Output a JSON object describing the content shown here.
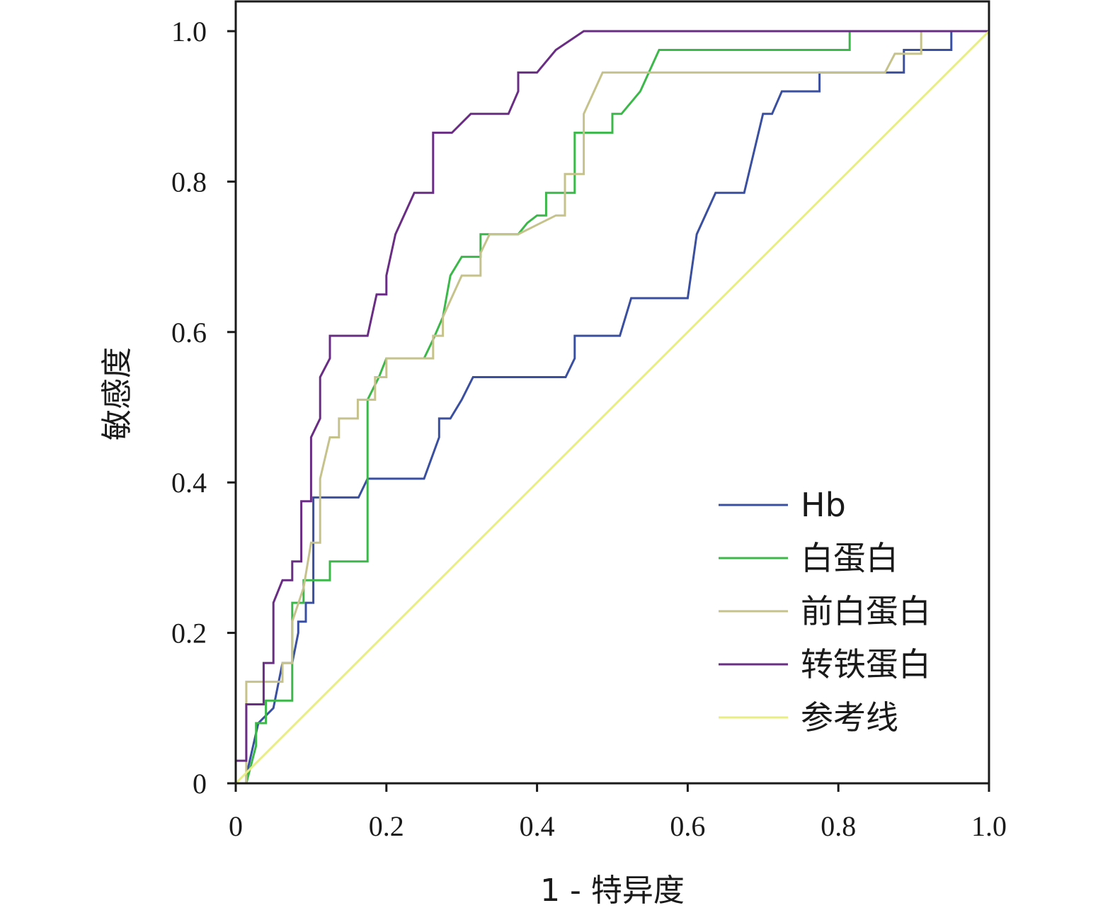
{
  "chart_data": {
    "type": "line",
    "title": "",
    "xlabel": "1 - 特异度",
    "ylabel": "敏感度",
    "xlim": [
      0,
      1
    ],
    "ylim": [
      0,
      1
    ],
    "xticks": [
      "0",
      "0.2",
      "0.4",
      "0.6",
      "0.8",
      "1.0"
    ],
    "yticks": [
      "0",
      "0.2",
      "0.4",
      "0.6",
      "0.8",
      "1.0"
    ],
    "grid": false,
    "legend_position": "bottom-right",
    "series": [
      {
        "name": "Hb",
        "color": "#3a4fa0",
        "points": [
          [
            0.014,
            0
          ],
          [
            0.014,
            0.01
          ],
          [
            0.03,
            0.08
          ],
          [
            0.05,
            0.1
          ],
          [
            0.062,
            0.16
          ],
          [
            0.075,
            0.16
          ],
          [
            0.083,
            0.2
          ],
          [
            0.083,
            0.215
          ],
          [
            0.093,
            0.215
          ],
          [
            0.093,
            0.24
          ],
          [
            0.103,
            0.24
          ],
          [
            0.103,
            0.38
          ],
          [
            0.163,
            0.38
          ],
          [
            0.175,
            0.405
          ],
          [
            0.25,
            0.405
          ],
          [
            0.27,
            0.46
          ],
          [
            0.27,
            0.485
          ],
          [
            0.285,
            0.485
          ],
          [
            0.3,
            0.51
          ],
          [
            0.315,
            0.54
          ],
          [
            0.438,
            0.54
          ],
          [
            0.45,
            0.565
          ],
          [
            0.45,
            0.595
          ],
          [
            0.51,
            0.595
          ],
          [
            0.525,
            0.645
          ],
          [
            0.6,
            0.645
          ],
          [
            0.612,
            0.73
          ],
          [
            0.637,
            0.785
          ],
          [
            0.675,
            0.785
          ],
          [
            0.7,
            0.89
          ],
          [
            0.712,
            0.89
          ],
          [
            0.725,
            0.92
          ],
          [
            0.775,
            0.92
          ],
          [
            0.775,
            0.945
          ],
          [
            0.887,
            0.945
          ],
          [
            0.887,
            0.975
          ],
          [
            0.95,
            0.975
          ],
          [
            0.95,
            1.0
          ],
          [
            1.0,
            1.0
          ]
        ]
      },
      {
        "name": "白蛋白",
        "color": "#3cb84a",
        "points": [
          [
            0.014,
            0
          ],
          [
            0.027,
            0.05
          ],
          [
            0.027,
            0.08
          ],
          [
            0.04,
            0.08
          ],
          [
            0.04,
            0.11
          ],
          [
            0.075,
            0.11
          ],
          [
            0.075,
            0.24
          ],
          [
            0.09,
            0.24
          ],
          [
            0.09,
            0.27
          ],
          [
            0.125,
            0.27
          ],
          [
            0.125,
            0.295
          ],
          [
            0.175,
            0.295
          ],
          [
            0.175,
            0.51
          ],
          [
            0.19,
            0.54
          ],
          [
            0.2,
            0.565
          ],
          [
            0.25,
            0.565
          ],
          [
            0.262,
            0.59
          ],
          [
            0.275,
            0.62
          ],
          [
            0.285,
            0.675
          ],
          [
            0.3,
            0.7
          ],
          [
            0.325,
            0.7
          ],
          [
            0.325,
            0.73
          ],
          [
            0.375,
            0.73
          ],
          [
            0.387,
            0.745
          ],
          [
            0.4,
            0.755
          ],
          [
            0.412,
            0.755
          ],
          [
            0.412,
            0.785
          ],
          [
            0.45,
            0.785
          ],
          [
            0.45,
            0.865
          ],
          [
            0.5,
            0.865
          ],
          [
            0.5,
            0.89
          ],
          [
            0.512,
            0.89
          ],
          [
            0.537,
            0.92
          ],
          [
            0.562,
            0.975
          ],
          [
            0.815,
            0.975
          ],
          [
            0.815,
            1.0
          ],
          [
            1.0,
            1.0
          ]
        ]
      },
      {
        "name": "前白蛋白",
        "color": "#c6c28c",
        "points": [
          [
            0.014,
            0
          ],
          [
            0.014,
            0.08
          ],
          [
            0.014,
            0.135
          ],
          [
            0.062,
            0.135
          ],
          [
            0.062,
            0.16
          ],
          [
            0.075,
            0.16
          ],
          [
            0.075,
            0.215
          ],
          [
            0.09,
            0.26
          ],
          [
            0.1,
            0.32
          ],
          [
            0.112,
            0.32
          ],
          [
            0.112,
            0.405
          ],
          [
            0.125,
            0.46
          ],
          [
            0.137,
            0.46
          ],
          [
            0.137,
            0.485
          ],
          [
            0.162,
            0.485
          ],
          [
            0.162,
            0.51
          ],
          [
            0.185,
            0.51
          ],
          [
            0.185,
            0.54
          ],
          [
            0.2,
            0.54
          ],
          [
            0.2,
            0.565
          ],
          [
            0.262,
            0.565
          ],
          [
            0.262,
            0.595
          ],
          [
            0.275,
            0.595
          ],
          [
            0.275,
            0.62
          ],
          [
            0.3,
            0.675
          ],
          [
            0.325,
            0.675
          ],
          [
            0.325,
            0.705
          ],
          [
            0.337,
            0.73
          ],
          [
            0.375,
            0.73
          ],
          [
            0.425,
            0.755
          ],
          [
            0.437,
            0.755
          ],
          [
            0.437,
            0.81
          ],
          [
            0.45,
            0.81
          ],
          [
            0.462,
            0.81
          ],
          [
            0.462,
            0.89
          ],
          [
            0.487,
            0.945
          ],
          [
            0.862,
            0.945
          ],
          [
            0.875,
            0.97
          ],
          [
            0.91,
            0.97
          ],
          [
            0.91,
            1.0
          ],
          [
            1.0,
            1.0
          ]
        ]
      },
      {
        "name": "转铁蛋白",
        "color": "#6a2d84",
        "points": [
          [
            0.0,
            0.03
          ],
          [
            0.014,
            0.03
          ],
          [
            0.014,
            0.105
          ],
          [
            0.037,
            0.105
          ],
          [
            0.037,
            0.16
          ],
          [
            0.05,
            0.16
          ],
          [
            0.05,
            0.24
          ],
          [
            0.062,
            0.27
          ],
          [
            0.075,
            0.27
          ],
          [
            0.075,
            0.295
          ],
          [
            0.087,
            0.295
          ],
          [
            0.087,
            0.375
          ],
          [
            0.1,
            0.375
          ],
          [
            0.1,
            0.46
          ],
          [
            0.112,
            0.485
          ],
          [
            0.112,
            0.54
          ],
          [
            0.125,
            0.565
          ],
          [
            0.125,
            0.595
          ],
          [
            0.175,
            0.595
          ],
          [
            0.187,
            0.65
          ],
          [
            0.2,
            0.65
          ],
          [
            0.2,
            0.675
          ],
          [
            0.212,
            0.73
          ],
          [
            0.237,
            0.785
          ],
          [
            0.262,
            0.785
          ],
          [
            0.262,
            0.865
          ],
          [
            0.287,
            0.865
          ],
          [
            0.312,
            0.89
          ],
          [
            0.362,
            0.89
          ],
          [
            0.375,
            0.92
          ],
          [
            0.375,
            0.945
          ],
          [
            0.4,
            0.945
          ],
          [
            0.425,
            0.975
          ],
          [
            0.462,
            1.0
          ],
          [
            1.0,
            1.0
          ]
        ]
      },
      {
        "name": "参考线",
        "color": "#e8ee82",
        "points": [
          [
            0.0,
            0.0
          ],
          [
            1.0,
            1.0
          ]
        ]
      }
    ]
  }
}
